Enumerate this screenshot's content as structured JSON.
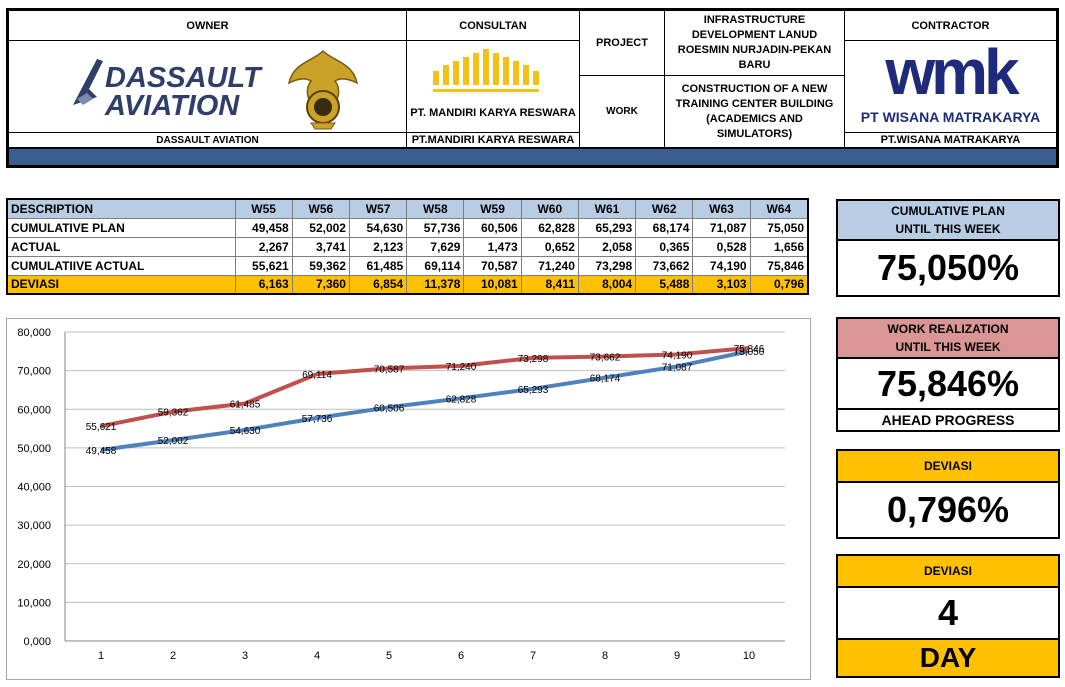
{
  "header": {
    "owner_label": "OWNER",
    "owner_logo_text_line1": "DASSAULT",
    "owner_logo_text_line2": "AVIATION",
    "owner_name": "DASSAULT AVIATION",
    "consultant_label": "CONSULTAN",
    "consultant_logo_text": "PT. MANDIRI KARYA RESWARA",
    "consultant_name": "PT.MANDIRI KARYA RESWARA",
    "project_label": "PROJECT",
    "project_value": "INFRASTRUCTURE DEVELOPMENT LANUD ROESMIN NURJADIN-PEKAN BARU",
    "work_label": "WORK",
    "work_value": "CONSTRUCTION OF A NEW TRAINING CENTER BUILDING (ACADEMICS AND SIMULATORS)",
    "contractor_label": "CONTRACTOR",
    "contractor_logo_text": "wmk",
    "contractor_logo_subtext": "PT WISANA MATRAKARYA",
    "contractor_name": "PT.WISANA MATRAKARYA"
  },
  "table": {
    "columns": [
      "DESCRIPTION",
      "W55",
      "W56",
      "W57",
      "W58",
      "W59",
      "W60",
      "W61",
      "W62",
      "W63",
      "W64"
    ],
    "rows": [
      {
        "label": "CUMULATIVE PLAN",
        "values": [
          "49,458",
          "52,002",
          "54,630",
          "57,736",
          "60,506",
          "62,828",
          "65,293",
          "68,174",
          "71,087",
          "75,050"
        ]
      },
      {
        "label": "ACTUAL",
        "values": [
          "2,267",
          "3,741",
          "2,123",
          "7,629",
          "1,473",
          "0,652",
          "2,058",
          "0,365",
          "0,528",
          "1,656"
        ]
      },
      {
        "label": "CUMULATIIVE ACTUAL",
        "values": [
          "55,621",
          "59,362",
          "61,485",
          "69,114",
          "70,587",
          "71,240",
          "73,298",
          "73,662",
          "74,190",
          "75,846"
        ]
      },
      {
        "label": "DEVIASI",
        "values": [
          "6,163",
          "7,360",
          "6,854",
          "11,378",
          "10,081",
          "8,411",
          "8,004",
          "5,488",
          "3,103",
          "0,796"
        ]
      }
    ]
  },
  "summary": {
    "plan_title_1": "CUMULATIVE PLAN",
    "plan_title_2": "UNTIL THIS WEEK",
    "plan_value": "75,050%",
    "real_title_1": "WORK REALIZATION",
    "real_title_2": "UNTIL THIS WEEK",
    "real_value": "75,846%",
    "real_status": "AHEAD PROGRESS",
    "dev_title": "DEVIASI",
    "dev_value": "0,796%",
    "dev_day_title": "DEVIASI",
    "dev_day_value": "4",
    "dev_day_unit": "DAY"
  },
  "colors": {
    "header_bar": "#3a5f8e",
    "table_header": "#b8cce4",
    "deviasi": "#ffc000",
    "plan_title_bg": "#b8cce4",
    "real_title_bg": "#da9694",
    "plan_line": "#4f81bd",
    "actual_line": "#c0504d"
  },
  "chart_data": {
    "type": "line",
    "x": [
      1,
      2,
      3,
      4,
      5,
      6,
      7,
      8,
      9,
      10
    ],
    "ylim": [
      0,
      80
    ],
    "yticks": [
      "0,000",
      "10,000",
      "20,000",
      "30,000",
      "40,000",
      "50,000",
      "60,000",
      "70,000",
      "80,000"
    ],
    "series": [
      {
        "name": "",
        "color": "#4f81bd",
        "values": [
          49.458,
          52.002,
          54.63,
          57.736,
          60.506,
          62.828,
          65.293,
          68.174,
          71.087,
          75.05
        ],
        "labels": [
          "49,458",
          "52,002",
          "54,630",
          "57,736",
          "60,506",
          "62,828",
          "65,293",
          "68,174",
          "71,087",
          "75,050"
        ]
      },
      {
        "name": "",
        "color": "#c0504d",
        "values": [
          55.621,
          59.362,
          61.485,
          69.114,
          70.587,
          71.24,
          73.298,
          73.662,
          74.19,
          75.846
        ],
        "labels": [
          "55,621",
          "59,362",
          "61,485",
          "69,114",
          "70,587",
          "71,240",
          "73,298",
          "73,662",
          "74,190",
          "75,846"
        ]
      }
    ],
    "grid": true,
    "legend": "none"
  }
}
